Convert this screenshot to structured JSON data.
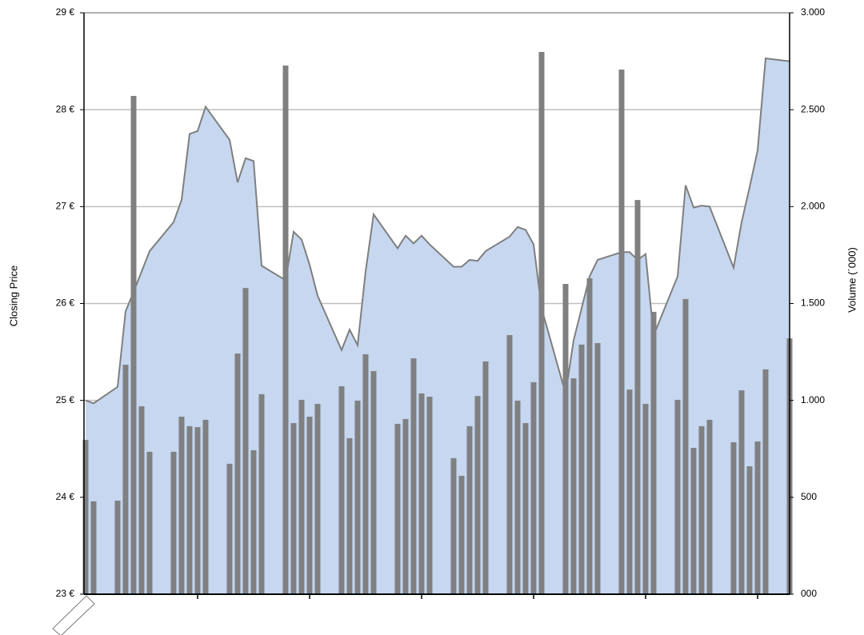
{
  "chart_data": {
    "type": "combo",
    "y_label": "Closing Price",
    "y2_label": "Volume (´000)",
    "x": [
      0,
      1,
      4,
      5,
      6,
      7,
      8,
      11,
      12,
      13,
      14,
      15,
      18,
      19,
      20,
      21,
      22,
      25,
      26,
      27,
      28,
      29,
      32,
      33,
      34,
      35,
      36,
      39,
      40,
      41,
      42,
      43,
      46,
      47,
      48,
      49,
      50,
      53,
      54,
      55,
      56,
      57,
      60,
      61,
      62,
      63,
      64,
      67,
      68,
      69,
      70,
      71,
      74,
      75,
      76,
      77,
      78,
      81,
      82,
      83,
      84,
      85,
      88
    ],
    "xlim": [
      -0.2,
      88
    ],
    "xticks": [
      14,
      28,
      42,
      56,
      70,
      84
    ],
    "ylim": [
      23,
      29
    ],
    "yticks": [
      {
        "value": 23,
        "label": "23 €"
      },
      {
        "value": 24,
        "label": "24 €"
      },
      {
        "value": 25,
        "label": "25 €"
      },
      {
        "value": 26,
        "label": "26 €"
      },
      {
        "value": 27,
        "label": "27 €"
      },
      {
        "value": 28,
        "label": "28 €"
      },
      {
        "value": 29,
        "label": "29 €"
      }
    ],
    "y2lim": [
      0,
      3000
    ],
    "y2ticks": [
      {
        "value": 0,
        "label": "000"
      },
      500,
      {
        "value": 1000,
        "label": "1.000"
      },
      {
        "value": 1500,
        "label": "1.500"
      },
      {
        "value": 2000,
        "label": "2.000"
      },
      {
        "value": 2500,
        "label": "2.500"
      },
      {
        "value": 3000,
        "label": "3.000"
      }
    ],
    "grid": true,
    "series": [
      {
        "type": "area",
        "axis": "y",
        "color": "#7f7f7f",
        "fill": "#c6d7ef",
        "values": [
          25.0,
          24.97,
          25.14,
          25.92,
          26.12,
          26.33,
          26.54,
          26.84,
          27.07,
          27.75,
          27.78,
          28.03,
          27.69,
          27.25,
          27.5,
          27.47,
          26.39,
          26.24,
          26.74,
          26.66,
          26.4,
          26.08,
          25.52,
          25.73,
          25.57,
          26.33,
          26.92,
          26.57,
          26.7,
          26.62,
          26.7,
          26.61,
          26.38,
          26.38,
          26.45,
          26.44,
          26.54,
          26.69,
          26.79,
          26.76,
          26.61,
          25.95,
          25.07,
          25.62,
          25.95,
          26.28,
          26.45,
          26.53,
          26.53,
          26.45,
          26.51,
          25.67,
          26.28,
          27.22,
          26.99,
          27.01,
          27.0,
          26.37,
          26.84,
          27.2,
          27.58,
          28.53,
          28.5
        ]
      },
      {
        "type": "bar",
        "axis": "y2",
        "color": "#808080",
        "values": [
          796,
          479,
          483,
          1184,
          2571,
          970,
          735,
          735,
          916,
          867,
          862,
          900,
          673,
          1242,
          1580,
          743,
          1032,
          2728,
          883,
          1003,
          916,
          982,
          1073,
          805,
          999,
          1238,
          1151,
          879,
          904,
          1217,
          1036,
          1019,
          702,
          611,
          867,
          1023,
          1201,
          1337,
          999,
          883,
          1094,
          2798,
          1601,
          1114,
          1288,
          1630,
          1296,
          2707,
          1056,
          2034,
          982,
          1457,
          1003,
          1523,
          755,
          867,
          900,
          784,
          1052,
          660,
          788,
          1160,
          1320
        ]
      }
    ]
  }
}
